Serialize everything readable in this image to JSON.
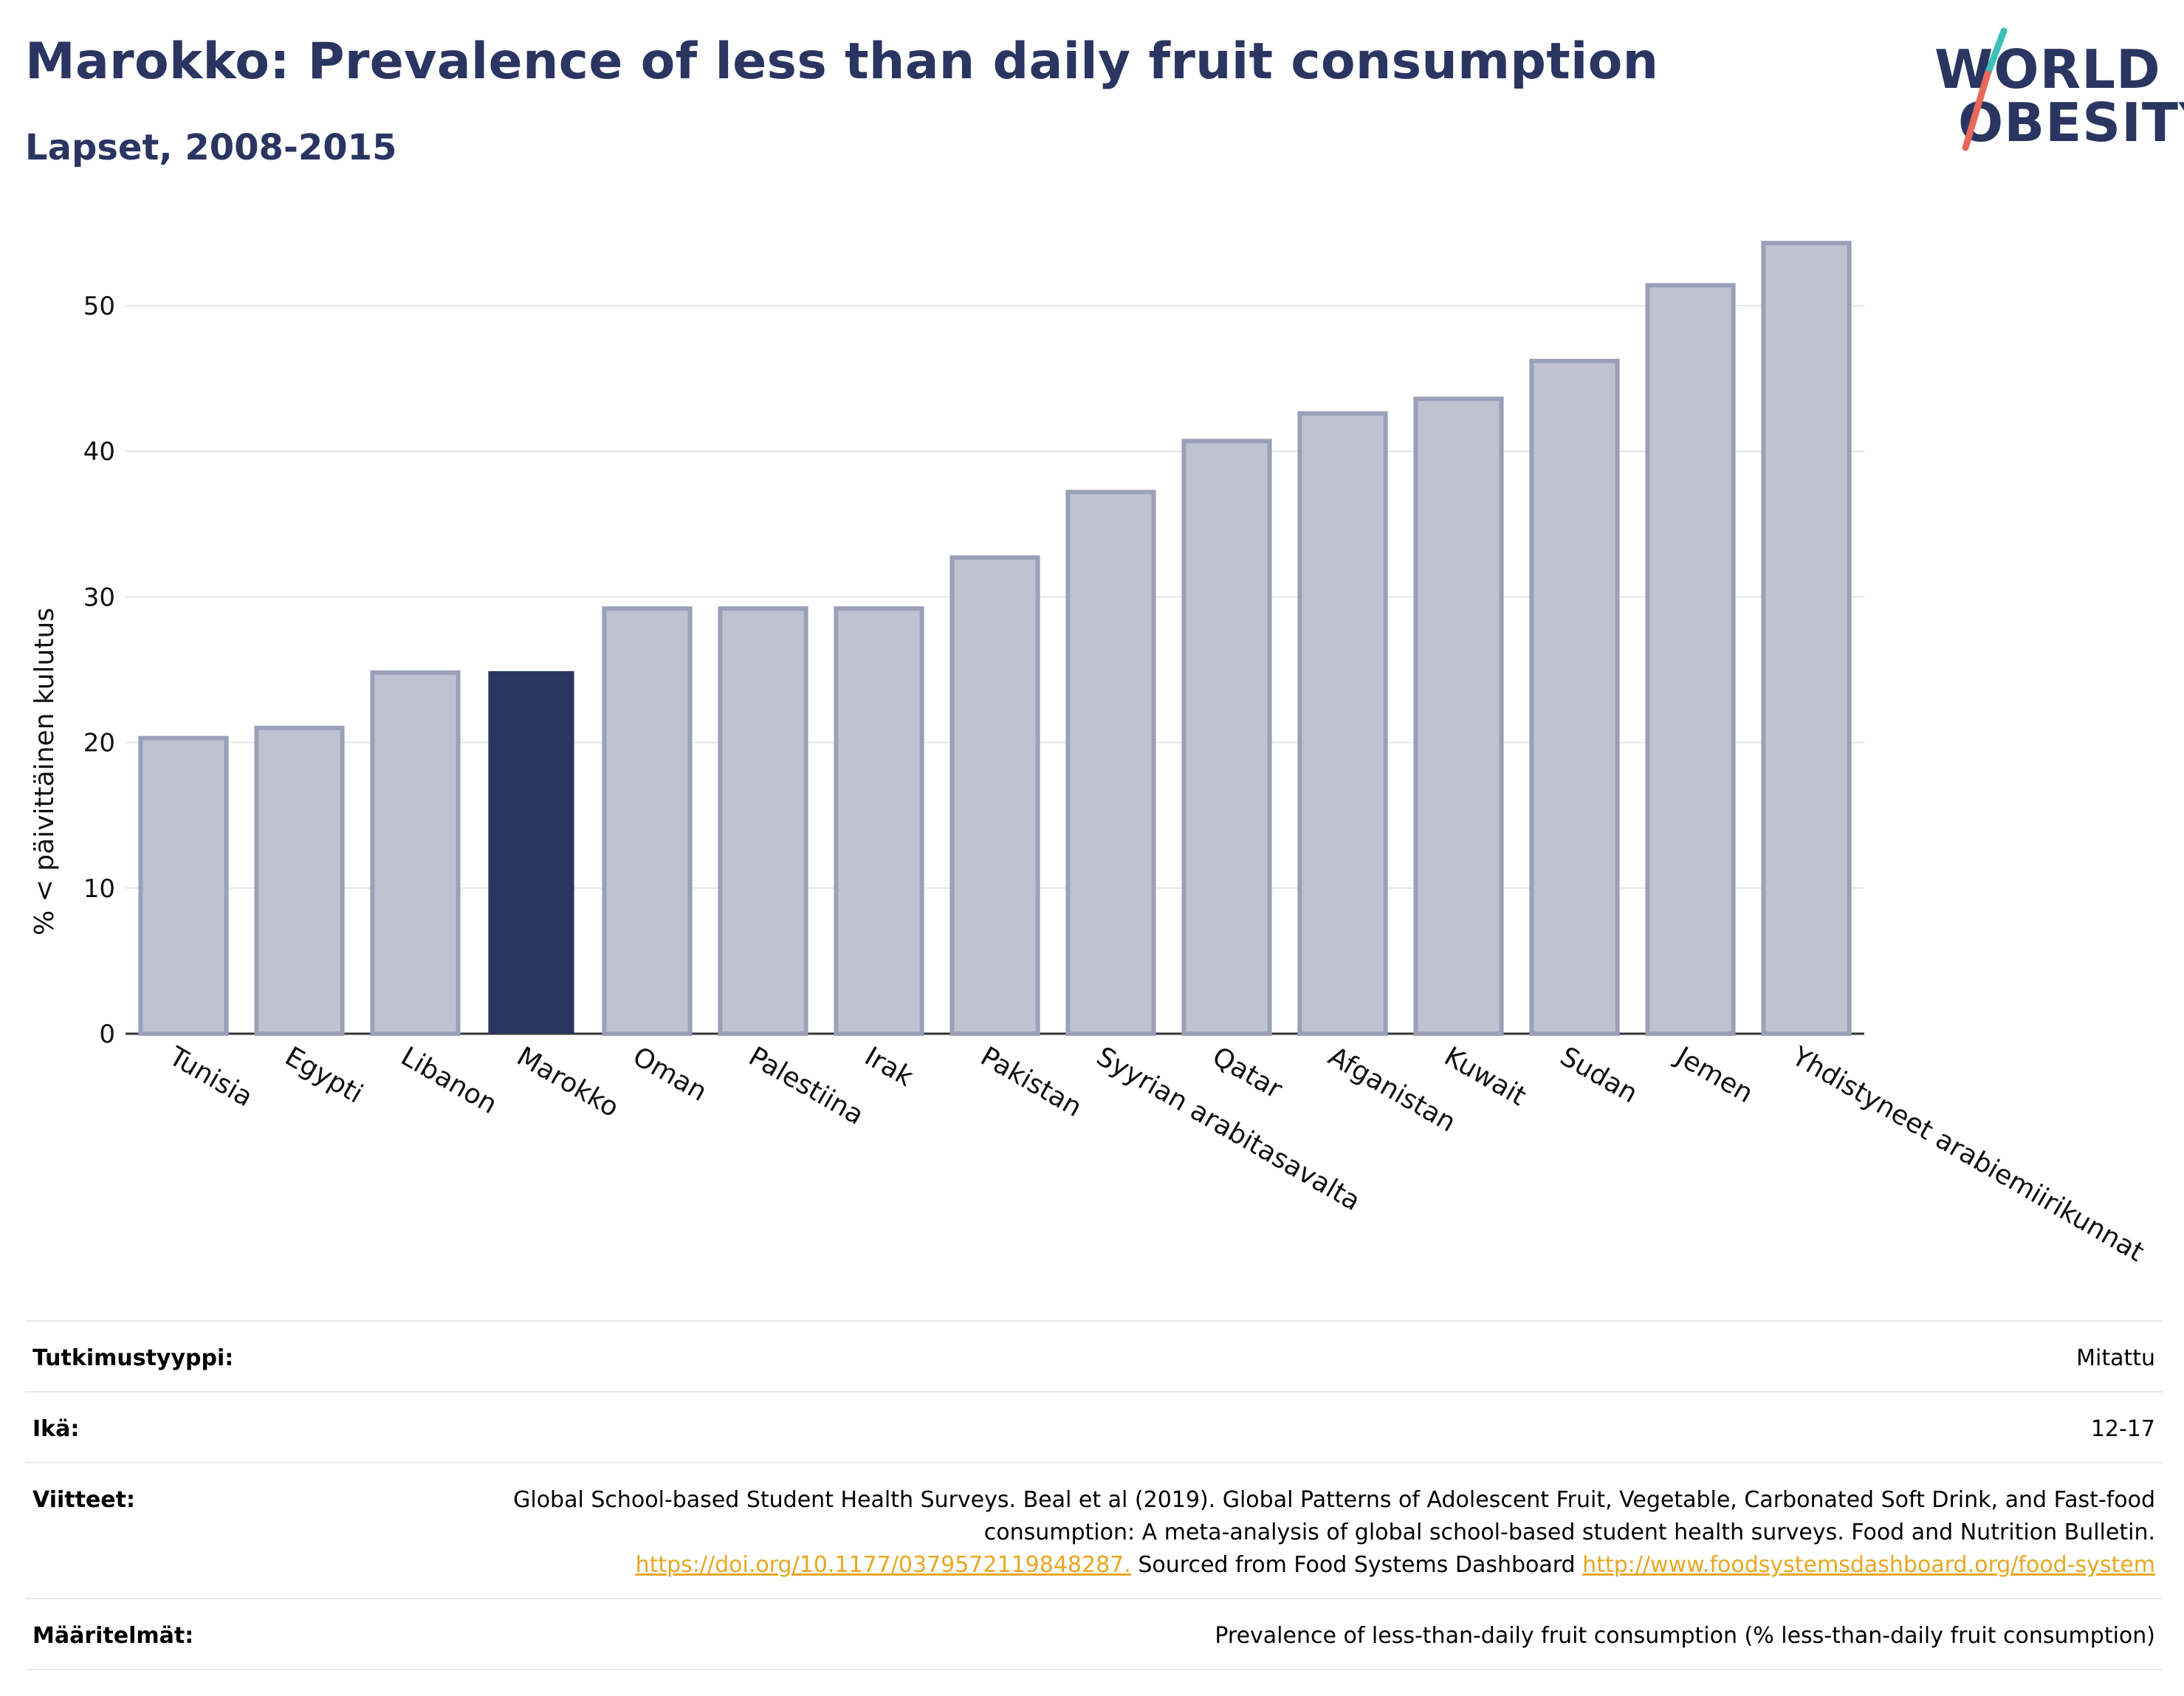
{
  "title": "Marokko: Prevalence of less than daily fruit consumption",
  "subtitle": "Lapset, 2008-2015",
  "logo": {
    "line1": "WORLD",
    "line2": "OBESITY",
    "accent_colors": [
      "#3bbfb9",
      "#e8685a"
    ]
  },
  "colors": {
    "highlight": "#2b3561",
    "bar_fill": "#bfc3d1",
    "bar_stroke": "#9aa0b8",
    "gridline": "#e6e6e6",
    "link": "#e8a722"
  },
  "chart_data": {
    "type": "bar",
    "categories": [
      "Tunisia",
      "Egypti",
      "Libanon",
      "Marokko",
      "Oman",
      "Palestiina",
      "Irak",
      "Pakistan",
      "Syyrian arabitasavalta",
      "Qatar",
      "Afganistan",
      "Kuwait",
      "Sudan",
      "Jemen",
      "Yhdistyneet arabiemiirikunnat"
    ],
    "values": [
      20.3,
      21.0,
      24.8,
      24.9,
      29.2,
      29.2,
      29.2,
      32.7,
      37.2,
      40.7,
      42.6,
      43.6,
      46.2,
      51.4,
      54.3
    ],
    "highlight": "Marokko",
    "ylabel": "% < päivittäinen kulutus",
    "xlabel": "",
    "ylim": [
      0,
      55
    ],
    "yticks": [
      0,
      10,
      20,
      30,
      40,
      50
    ],
    "grid": true
  },
  "meta": {
    "study_type": {
      "label": "Tutkimustyyppi:",
      "value": "Mitattu"
    },
    "age": {
      "label": "Ikä:",
      "value": "12-17"
    },
    "references": {
      "label": "Viitteet:",
      "text1": "Global School-based Student Health Surveys. Beal et al (2019). Global Patterns of Adolescent Fruit, Vegetable, Carbonated Soft Drink, and Fast-food consumption: A meta-analysis of global school-based student health surveys. Food and Nutrition Bulletin.",
      "link1": "https://doi.org/10.1177/0379572119848287.",
      "text2": "Sourced from Food Systems Dashboard",
      "link2": "http://www.foodsystemsdashboard.org/food-system"
    },
    "definitions": {
      "label": "Määritelmät:",
      "value": "Prevalence of less-than-daily fruit consumption (% less-than-daily fruit consumption)"
    }
  }
}
